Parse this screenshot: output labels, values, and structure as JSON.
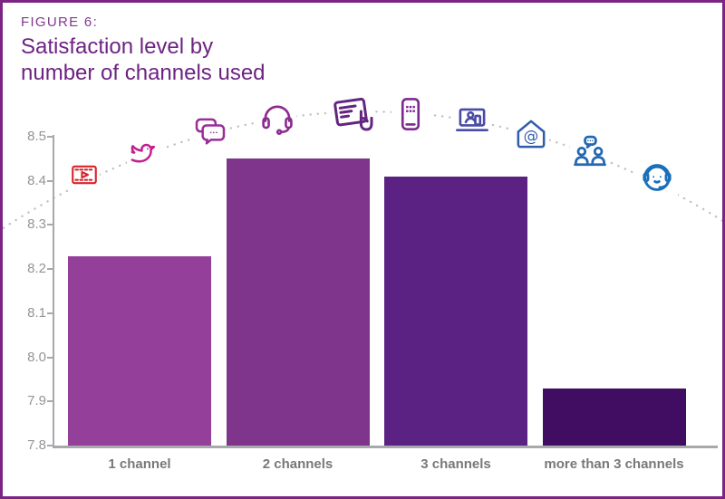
{
  "figure": {
    "label": "FIGURE 6:",
    "title_line1": "Satisfaction level by",
    "title_line2": "number of channels used"
  },
  "colors": {
    "frame_border": "#7b2484",
    "figure_label_text": "#83388f",
    "title_text": "#6d2383",
    "axis_line": "#a7a9ac",
    "ytick_label_text": "#939598",
    "xlabel_text": "#77787b",
    "dotted_curve": "#c1c1c1",
    "bar_colors": [
      "#943f9a",
      "#7f358b",
      "#5b2183",
      "#400d63"
    ]
  },
  "chart_data": {
    "type": "bar",
    "title": "Satisfaction level by number of channels used",
    "categories": [
      "1 channel",
      "2 channels",
      "3 channels",
      "more than 3 channels"
    ],
    "values": [
      8.23,
      8.45,
      8.41,
      7.93
    ],
    "xlabel": "",
    "ylabel": "",
    "ylim": [
      7.8,
      8.5
    ],
    "ytick_step": 0.1,
    "yticks": [
      "8.5",
      "8.4",
      "8.3",
      "8.2",
      "8.1",
      "8.0",
      "7.9",
      "7.8"
    ],
    "grid": false,
    "legend": "none",
    "decoration": {
      "curve": "dotted arc passing over the bars from lower-left to lower-right",
      "icons": [
        {
          "name": "video-player-icon",
          "color": "#d6252b"
        },
        {
          "name": "bird-icon",
          "color": "#c2208c"
        },
        {
          "name": "chat-bubbles-icon",
          "color": "#9a2d98"
        },
        {
          "name": "headset-icon",
          "color": "#8b2b8f"
        },
        {
          "name": "tablet-touch-icon",
          "color": "#63257f"
        },
        {
          "name": "mobile-phone-icon",
          "color": "#7c2a90"
        },
        {
          "name": "laptop-video-call-icon",
          "color": "#4a4ba5"
        },
        {
          "name": "email-home-icon",
          "color": "#2f5dab"
        },
        {
          "name": "people-conversation-icon",
          "color": "#2268b2"
        },
        {
          "name": "customer-support-icon",
          "color": "#1a6fba"
        }
      ]
    }
  }
}
